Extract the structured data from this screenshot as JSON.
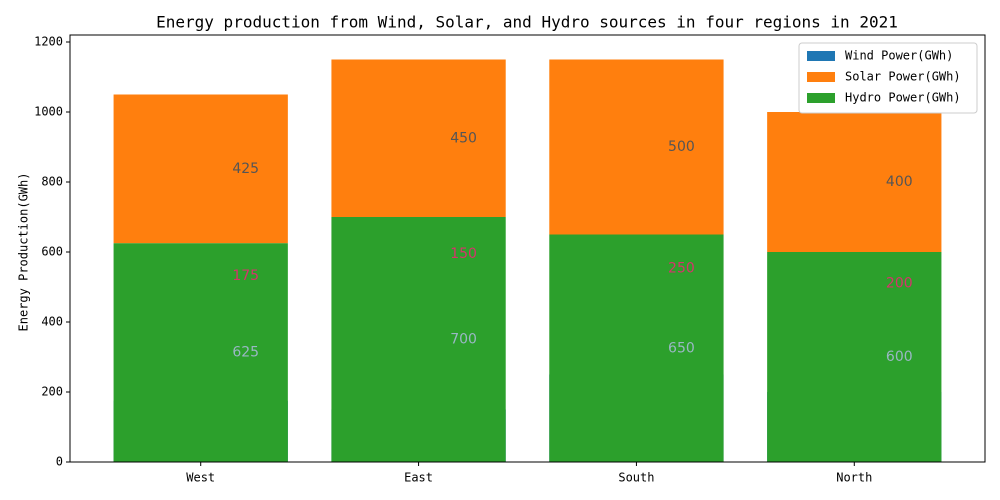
{
  "chart_data": {
    "type": "bar",
    "title": "Energy production from Wind, Solar, and Hydro sources in four regions in 2021",
    "y_label": "Energy Production(GWh)",
    "categories": [
      "West",
      "East",
      "South",
      "North"
    ],
    "series": [
      {
        "name": "Wind Power(GWh)",
        "color": "#1f77b4",
        "values": [
          175,
          150,
          250,
          200
        ]
      },
      {
        "name": "Solar Power(GWh)",
        "color": "#ff7f0e",
        "values": [
          425,
          450,
          500,
          400
        ]
      },
      {
        "name": "Hydro Power(GWh)",
        "color": "#2ca02c",
        "values": [
          625,
          700,
          650,
          600
        ]
      }
    ],
    "ylim": [
      0,
      1220
    ],
    "yticks": [
      0,
      200,
      400,
      600,
      800,
      1000,
      1200
    ],
    "legend": "upper right"
  }
}
